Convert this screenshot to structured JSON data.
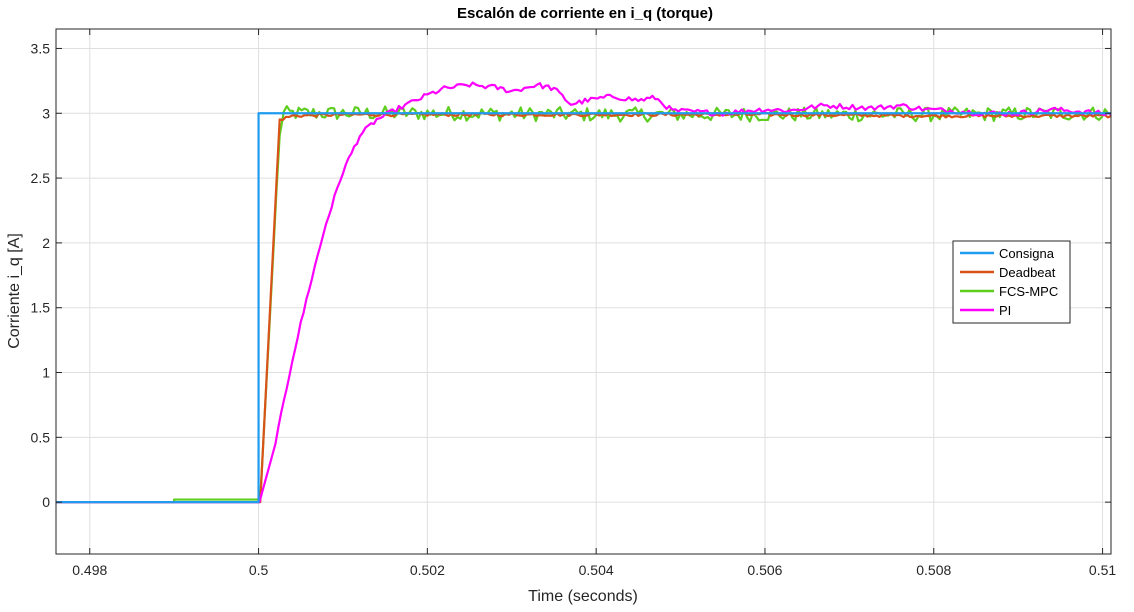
{
  "chart_data": {
    "type": "line",
    "title": "Escalón de corriente en i_q (torque)",
    "xlabel": "Time (seconds)",
    "ylabel": "Corriente i_q [A]",
    "xlim": [
      0.4976,
      0.5101
    ],
    "ylim": [
      -0.4,
      3.65
    ],
    "xticks": [
      0.498,
      0.5,
      0.502,
      0.504,
      0.506,
      0.508,
      0.51
    ],
    "xtick_labels": [
      "0.498",
      "0.5",
      "0.502",
      "0.504",
      "0.506",
      "0.508",
      "0.51"
    ],
    "yticks": [
      0,
      0.5,
      1,
      1.5,
      2,
      2.5,
      3,
      3.5
    ],
    "ytick_labels": [
      "0",
      "0.5",
      "1",
      "1.5",
      "2",
      "2.5",
      "3",
      "3.5"
    ],
    "grid": true,
    "legend_position": "center-right",
    "series": [
      {
        "name": "Consigna",
        "color": "#1F9BEF",
        "points": [
          [
            0.4976,
            0
          ],
          [
            0.5,
            0
          ],
          [
            0.5,
            3
          ],
          [
            0.5101,
            3
          ]
        ]
      },
      {
        "name": "Deadbeat",
        "color": "#D95319",
        "points": [
          [
            0.4976,
            0
          ],
          [
            0.50002,
            0
          ],
          [
            0.50025,
            2.95
          ],
          [
            0.5004,
            2.98
          ],
          [
            0.501,
            2.99
          ],
          [
            0.502,
            2.99
          ],
          [
            0.504,
            2.99
          ],
          [
            0.506,
            2.99
          ],
          [
            0.508,
            2.98
          ],
          [
            0.5101,
            2.98
          ]
        ]
      },
      {
        "name": "FCS-MPC",
        "color": "#5DCD1E",
        "points": [
          [
            0.4976,
            0
          ],
          [
            0.499,
            0
          ],
          [
            0.499,
            0.02
          ],
          [
            0.50002,
            0.02
          ],
          [
            0.50025,
            2.85
          ],
          [
            0.5003,
            3.0
          ],
          [
            0.501,
            3.0
          ],
          [
            0.502,
            3.0
          ],
          [
            0.504,
            2.99
          ],
          [
            0.506,
            2.99
          ],
          [
            0.508,
            2.99
          ],
          [
            0.5101,
            3.0
          ]
        ]
      },
      {
        "name": "PI",
        "color": "#FF00FF",
        "points": [
          [
            0.4976,
            0
          ],
          [
            0.50001,
            0
          ],
          [
            0.5002,
            0.45
          ],
          [
            0.5004,
            1.1
          ],
          [
            0.5006,
            1.65
          ],
          [
            0.5008,
            2.15
          ],
          [
            0.501,
            2.55
          ],
          [
            0.5012,
            2.83
          ],
          [
            0.5014,
            2.95
          ],
          [
            0.5017,
            3.05
          ],
          [
            0.502,
            3.14
          ],
          [
            0.5022,
            3.19
          ],
          [
            0.5025,
            3.22
          ],
          [
            0.5028,
            3.2
          ],
          [
            0.503,
            3.17
          ],
          [
            0.5033,
            3.22
          ],
          [
            0.5035,
            3.19
          ],
          [
            0.5037,
            3.07
          ],
          [
            0.5039,
            3.1
          ],
          [
            0.5042,
            3.13
          ],
          [
            0.5045,
            3.1
          ],
          [
            0.5047,
            3.12
          ],
          [
            0.5049,
            3.02
          ],
          [
            0.5052,
            3.01
          ],
          [
            0.5055,
            3.0
          ],
          [
            0.5058,
            3.02
          ],
          [
            0.506,
            3.03
          ],
          [
            0.5063,
            3.02
          ],
          [
            0.5067,
            3.06
          ],
          [
            0.507,
            3.05
          ],
          [
            0.5073,
            3.04
          ],
          [
            0.5076,
            3.06
          ],
          [
            0.5079,
            3.03
          ],
          [
            0.5082,
            3.02
          ],
          [
            0.5086,
            3.0
          ],
          [
            0.509,
            3.0
          ],
          [
            0.5094,
            3.03
          ],
          [
            0.5098,
            3.01
          ],
          [
            0.5101,
            2.99
          ]
        ]
      }
    ]
  }
}
